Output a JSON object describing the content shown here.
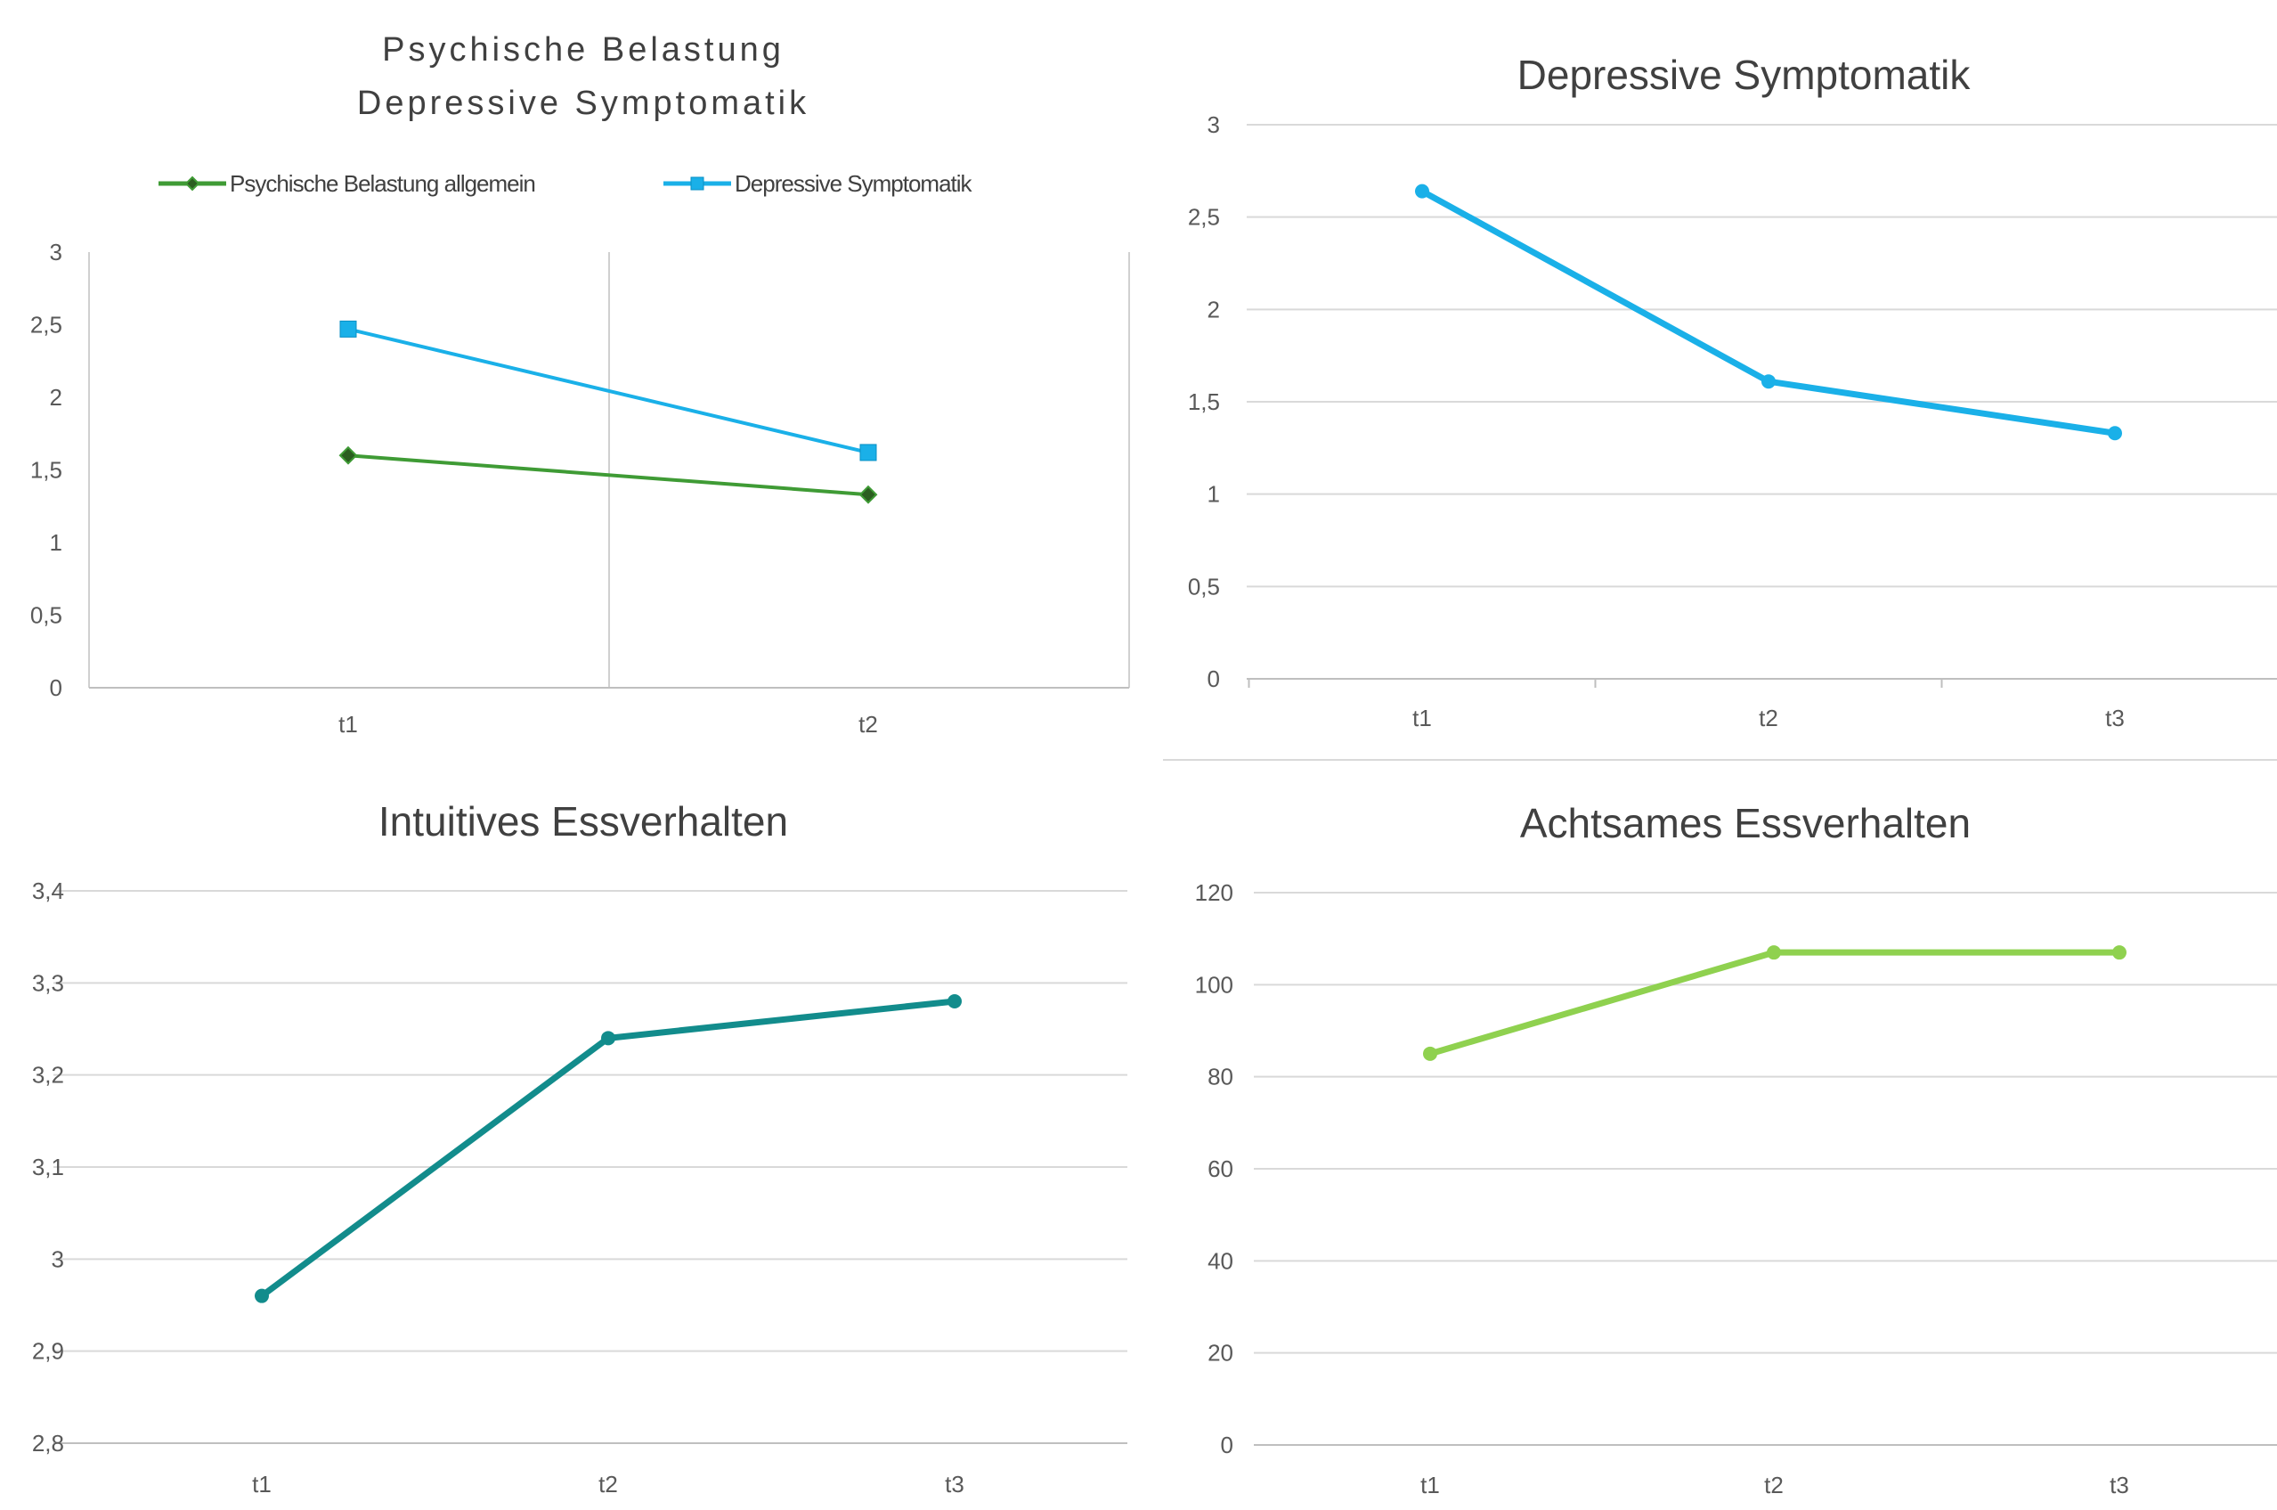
{
  "chart_data": [
    {
      "type": "line",
      "title": "Psychische Belastung",
      "subtitle": "Depressive Symptomatik",
      "categories": [
        "t1",
        "t2"
      ],
      "series": [
        {
          "name": "Psychische Belastung allgemein",
          "values": [
            1.6,
            1.33
          ],
          "color": "#3f9b35",
          "marker": "diamond"
        },
        {
          "name": "Depressive Symptomatik",
          "values": [
            2.47,
            1.62
          ],
          "color": "#1ab0e8",
          "marker": "square"
        }
      ],
      "ylim": [
        0,
        3
      ],
      "yticks": [
        "0",
        "0,5",
        "1",
        "1,5",
        "2",
        "2,5",
        "3"
      ],
      "legend_position": "top",
      "grid": false
    },
    {
      "type": "line",
      "title": "Depressive Symptomatik",
      "categories": [
        "t1",
        "t2",
        "t3"
      ],
      "series": [
        {
          "values": [
            2.64,
            1.61,
            1.33
          ],
          "color": "#1ab0e8",
          "marker": "circle"
        }
      ],
      "ylim": [
        0,
        3
      ],
      "yticks": [
        "0",
        "0,5",
        "1",
        "1,5",
        "2",
        "2,5",
        "3"
      ],
      "grid": true
    },
    {
      "type": "line",
      "title": "Intuitives Essverhalten",
      "categories": [
        "t1",
        "t2",
        "t3"
      ],
      "series": [
        {
          "values": [
            2.96,
            3.24,
            3.28
          ],
          "color": "#128c8c",
          "marker": "circle"
        }
      ],
      "ylim": [
        2.8,
        3.4
      ],
      "yticks": [
        "2,8",
        "2,9",
        "3",
        "3,1",
        "3,2",
        "3,3",
        "3,4"
      ],
      "grid": true
    },
    {
      "type": "line",
      "title": "Achtsames Essverhalten",
      "categories": [
        "t1",
        "t2",
        "t3"
      ],
      "series": [
        {
          "values": [
            85,
            107,
            107
          ],
          "color": "#8fd14f",
          "marker": "circle"
        }
      ],
      "ylim": [
        0,
        120
      ],
      "yticks": [
        "0",
        "20",
        "40",
        "60",
        "80",
        "100",
        "120"
      ],
      "grid": true
    }
  ]
}
